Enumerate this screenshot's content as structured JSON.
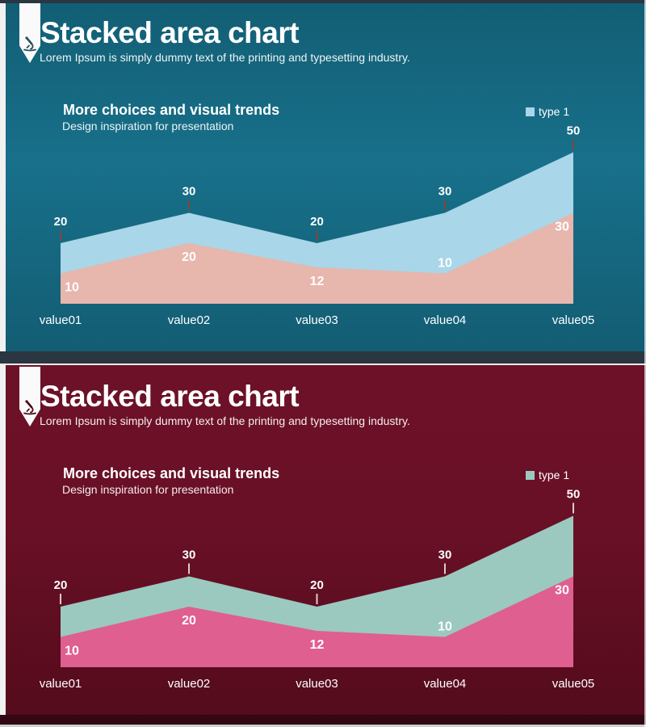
{
  "slides": [
    {
      "name": "teal",
      "title": "Stacked area chart",
      "subtitle": "Lorem Ipsum is simply dummy text of the printing and typesetting industry.",
      "heading": "More choices and visual trends",
      "subheading": "Design inspiration for presentation",
      "legend_label": "type 1",
      "colors": {
        "background_top": "#125e74",
        "background_mid": "#18708a",
        "background_bottom": "#125c72",
        "edge_strip": "#2a3640",
        "series_top": "#a9d6e8",
        "series_bottom": "#e7b6ac",
        "tick": "#7b493b",
        "icon": "#27505e"
      }
    },
    {
      "name": "maroon",
      "title": "Stacked area chart",
      "subtitle": "Lorem Ipsum is simply dummy text of the printing and typesetting industry.",
      "heading": "More choices and visual trends",
      "subheading": "Design inspiration for presentation",
      "legend_label": "type 1",
      "colors": {
        "background_top": "#6d1128",
        "background_mid": "#691026",
        "background_bottom": "#530b1b",
        "edge_strip": "#330713",
        "series_top": "#9bc9bf",
        "series_bottom": "#df5f90",
        "tick": "#d9cdcd",
        "icon": "#4a0c1b"
      }
    }
  ],
  "chart_data": {
    "type": "area",
    "title": "Stacked area chart",
    "categories": [
      "value01",
      "value02",
      "value03",
      "value04",
      "value05"
    ],
    "series": [
      {
        "name": "type 1",
        "values": [
          20,
          30,
          20,
          30,
          50
        ]
      },
      {
        "name": "",
        "values": [
          10,
          20,
          12,
          10,
          30
        ]
      }
    ],
    "ylim": [
      0,
      50
    ],
    "grid": false,
    "legend_position": "top-right",
    "note": "Upper boundary labels (20,30,20,30,50) mark the top series line; inner labels (10,20,12,10,30) mark the lower pink series."
  }
}
